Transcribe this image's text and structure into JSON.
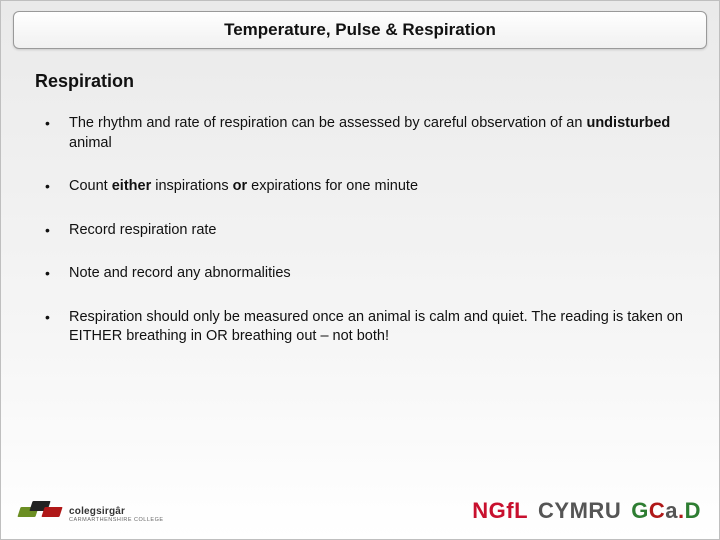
{
  "colors": {
    "background_top": "#eaeaea",
    "background_bottom": "#ffffff",
    "border": "#bfbfbf",
    "titlebar_border": "#999999",
    "text": "#111111",
    "ngfl_red": "#c8102e",
    "cymru_grey": "#555555",
    "gcad_green": "#2e7d32",
    "gcad_red": "#b01818",
    "flag_green": "#6b8e23",
    "flag_black": "#222222",
    "flag_red": "#b01818"
  },
  "typography": {
    "title_fontsize": 17,
    "heading_fontsize": 18,
    "body_fontsize": 14.5,
    "footer_brand_fontsize": 22
  },
  "title": "Temperature, Pulse & Respiration",
  "section_heading": "Respiration",
  "bullets": [
    {
      "segments": [
        {
          "t": "The rhythm and rate of respiration can be assessed by careful observation of an ",
          "b": false
        },
        {
          "t": "undisturbed",
          "b": true
        },
        {
          "t": " animal",
          "b": false
        }
      ]
    },
    {
      "segments": [
        {
          "t": "Count ",
          "b": false
        },
        {
          "t": "either",
          "b": true
        },
        {
          "t": " inspirations ",
          "b": false
        },
        {
          "t": "or",
          "b": true
        },
        {
          "t": " expirations for one minute",
          "b": false
        }
      ]
    },
    {
      "segments": [
        {
          "t": "Record respiration rate",
          "b": false
        }
      ]
    },
    {
      "segments": [
        {
          "t": "Note and record any abnormalities",
          "b": false
        }
      ]
    },
    {
      "segments": [
        {
          "t": "Respiration should only be measured once an animal is calm and quiet. The reading is taken on EITHER breathing in OR breathing out – not both!",
          "b": false
        }
      ]
    }
  ],
  "footer": {
    "left_logo_name": "colegsirgâr",
    "left_logo_sub": "CARMARTHENSHIRE COLLEGE",
    "ngfl": "NGfL",
    "cymru": "CYMRU",
    "gcad": {
      "g": "G",
      "c": "C",
      "a": "a",
      "dot": ".",
      "d": "D"
    }
  }
}
